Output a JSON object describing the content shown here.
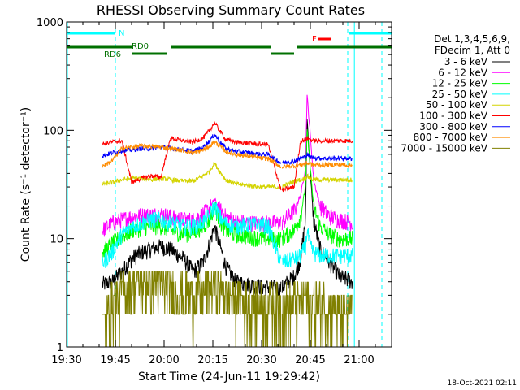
{
  "chart_data": {
    "type": "line",
    "title": "RHESSI Observing Summary Count Rates",
    "xlabel": "Start Time (24-Jun-11 19:29:42)",
    "ylabel": "Count Rate (s⁻¹ detector⁻¹)",
    "xscale": "time-minutes-after-19:30",
    "yscale": "log",
    "xlim": [
      0,
      100
    ],
    "ylim": [
      1,
      1000
    ],
    "x_ticks": [
      {
        "t": 0,
        "label": "19:30"
      },
      {
        "t": 15,
        "label": "19:45"
      },
      {
        "t": 30,
        "label": "20:00"
      },
      {
        "t": 45,
        "label": "20:15"
      },
      {
        "t": 60,
        "label": "20:30"
      },
      {
        "t": 75,
        "label": "20:45"
      },
      {
        "t": 90,
        "label": "21:00"
      }
    ],
    "y_ticks": [
      {
        "v": 1,
        "label": "1"
      },
      {
        "v": 10,
        "label": "10"
      },
      {
        "v": 100,
        "label": "100"
      },
      {
        "v": 1000,
        "label": "1000"
      }
    ],
    "legend_header": [
      "Det 1,3,4,5,6,9,",
      "FDecim 1, Att 0"
    ],
    "legend_placement": "right",
    "data_gaps": [
      [
        0,
        11
      ],
      [
        36,
        36.3
      ],
      [
        66,
        66.3
      ],
      [
        88,
        100
      ]
    ],
    "series": [
      {
        "name": "3 - 6 keV",
        "color": "#000000",
        "points": [
          [
            11,
            3.8
          ],
          [
            14,
            4.0
          ],
          [
            17,
            5.0
          ],
          [
            20,
            6.5
          ],
          [
            23,
            7.5
          ],
          [
            26,
            8.0
          ],
          [
            29,
            8.5
          ],
          [
            32,
            8.0
          ],
          [
            36,
            6.5
          ],
          [
            39,
            5.0
          ],
          [
            42,
            6.0
          ],
          [
            44,
            9.0
          ],
          [
            45.5,
            13.0
          ],
          [
            47,
            9.0
          ],
          [
            49,
            5.5
          ],
          [
            52,
            4.0
          ],
          [
            56,
            3.8
          ],
          [
            60,
            3.6
          ],
          [
            62,
            3.6
          ],
          [
            66,
            3.5
          ],
          [
            70,
            4.5
          ],
          [
            72,
            6.5
          ],
          [
            73.5,
            15.0
          ],
          [
            74,
            130.0
          ],
          [
            75,
            40.0
          ],
          [
            76,
            15.0
          ],
          [
            78,
            8.0
          ],
          [
            81,
            6.0
          ],
          [
            84,
            4.5
          ],
          [
            88,
            4.0
          ]
        ]
      },
      {
        "name": "6 - 12 keV",
        "color": "#ff00ff",
        "points": [
          [
            11,
            12.0
          ],
          [
            14,
            14.0
          ],
          [
            17,
            15.0
          ],
          [
            20,
            16.0
          ],
          [
            23,
            16.5
          ],
          [
            26,
            16.5
          ],
          [
            29,
            17.0
          ],
          [
            32,
            16.0
          ],
          [
            36,
            15.0
          ],
          [
            39,
            15.0
          ],
          [
            42,
            17.0
          ],
          [
            44,
            19.0
          ],
          [
            45.5,
            23.0
          ],
          [
            47,
            19.0
          ],
          [
            49,
            16.0
          ],
          [
            52,
            14.5
          ],
          [
            56,
            14.0
          ],
          [
            60,
            14.0
          ],
          [
            62,
            14.0
          ],
          [
            66,
            14.0
          ],
          [
            70,
            18.0
          ],
          [
            72,
            25.0
          ],
          [
            73.5,
            45.0
          ],
          [
            74,
            210.0
          ],
          [
            75,
            90.0
          ],
          [
            76,
            35.0
          ],
          [
            78,
            20.0
          ],
          [
            81,
            16.0
          ],
          [
            84,
            15.0
          ],
          [
            88,
            14.0
          ]
        ]
      },
      {
        "name": "12 - 25 keV",
        "color": "#00ff00",
        "points": [
          [
            11,
            7.5
          ],
          [
            14,
            9.0
          ],
          [
            17,
            10.5
          ],
          [
            20,
            12.0
          ],
          [
            23,
            12.5
          ],
          [
            26,
            13.0
          ],
          [
            29,
            13.0
          ],
          [
            32,
            12.0
          ],
          [
            36,
            11.0
          ],
          [
            39,
            11.5
          ],
          [
            42,
            13.0
          ],
          [
            44,
            15.0
          ],
          [
            45.5,
            20.0
          ],
          [
            47,
            15.0
          ],
          [
            49,
            12.0
          ],
          [
            52,
            11.0
          ],
          [
            56,
            10.5
          ],
          [
            60,
            10.0
          ],
          [
            62,
            10.0
          ],
          [
            66,
            10.0
          ],
          [
            70,
            12.0
          ],
          [
            72,
            16.0
          ],
          [
            73.5,
            30.0
          ],
          [
            74,
            100.0
          ],
          [
            75,
            45.0
          ],
          [
            76,
            20.0
          ],
          [
            78,
            13.0
          ],
          [
            81,
            11.0
          ],
          [
            84,
            10.0
          ],
          [
            88,
            10.0
          ]
        ]
      },
      {
        "name": "25 - 50 keV",
        "color": "#00ffff",
        "points": [
          [
            11,
            6.0
          ],
          [
            14,
            7.5
          ],
          [
            17,
            11.0
          ],
          [
            20,
            13.0
          ],
          [
            23,
            14.0
          ],
          [
            26,
            15.0
          ],
          [
            29,
            15.0
          ],
          [
            32,
            14.0
          ],
          [
            36,
            13.0
          ],
          [
            39,
            13.0
          ],
          [
            42,
            14.5
          ],
          [
            44,
            16.0
          ],
          [
            45.5,
            21.0
          ],
          [
            47,
            16.0
          ],
          [
            49,
            14.0
          ],
          [
            52,
            13.0
          ],
          [
            56,
            13.5
          ],
          [
            60,
            13.5
          ],
          [
            62,
            13.0
          ],
          [
            66,
            6.0
          ],
          [
            70,
            6.5
          ],
          [
            72,
            7.0
          ],
          [
            73.5,
            8.5
          ],
          [
            74,
            12.0
          ],
          [
            75,
            8.5
          ],
          [
            76,
            7.5
          ],
          [
            78,
            7.0
          ],
          [
            81,
            7.0
          ],
          [
            84,
            7.0
          ],
          [
            88,
            7.0
          ]
        ]
      },
      {
        "name": "50 - 100 keV",
        "color": "#d4d400",
        "points": [
          [
            11,
            32.0
          ],
          [
            14,
            33.0
          ],
          [
            17,
            35.0
          ],
          [
            20,
            36.0
          ],
          [
            23,
            36.0
          ],
          [
            26,
            35.0
          ],
          [
            29,
            36.0
          ],
          [
            32,
            35.0
          ],
          [
            36,
            34.0
          ],
          [
            39,
            34.0
          ],
          [
            42,
            38.0
          ],
          [
            44,
            42.0
          ],
          [
            45.5,
            50.0
          ],
          [
            47,
            42.0
          ],
          [
            49,
            35.0
          ],
          [
            52,
            32.0
          ],
          [
            56,
            31.0
          ],
          [
            60,
            30.0
          ],
          [
            62,
            30.0
          ],
          [
            66,
            30.0
          ],
          [
            70,
            34.0
          ],
          [
            72,
            35.0
          ],
          [
            73.5,
            36.0
          ],
          [
            74,
            38.0
          ],
          [
            75,
            36.0
          ],
          [
            76,
            35.0
          ],
          [
            78,
            35.0
          ],
          [
            81,
            35.0
          ],
          [
            84,
            35.0
          ],
          [
            88,
            35.0
          ]
        ]
      },
      {
        "name": "100 - 300 keV",
        "color": "#ff0000",
        "points": [
          [
            11,
            75.0
          ],
          [
            14,
            78.0
          ],
          [
            17,
            80.0
          ],
          [
            20,
            33.0
          ],
          [
            23,
            36.0
          ],
          [
            26,
            38.0
          ],
          [
            29,
            37.0
          ],
          [
            32,
            85.0
          ],
          [
            36,
            80.0
          ],
          [
            39,
            78.0
          ],
          [
            42,
            85.0
          ],
          [
            44,
            100.0
          ],
          [
            45.5,
            118.0
          ],
          [
            47,
            100.0
          ],
          [
            49,
            82.0
          ],
          [
            52,
            78.0
          ],
          [
            56,
            76.0
          ],
          [
            60,
            74.0
          ],
          [
            62,
            74.0
          ],
          [
            66,
            28.0
          ],
          [
            70,
            30.0
          ],
          [
            72,
            80.0
          ],
          [
            73.5,
            82.0
          ],
          [
            74,
            85.0
          ],
          [
            75,
            82.0
          ],
          [
            76,
            80.0
          ],
          [
            78,
            80.0
          ],
          [
            81,
            80.0
          ],
          [
            84,
            80.0
          ],
          [
            88,
            80.0
          ]
        ]
      },
      {
        "name": "300 - 800 keV",
        "color": "#0000ff",
        "points": [
          [
            11,
            58.0
          ],
          [
            14,
            62.0
          ],
          [
            17,
            65.0
          ],
          [
            20,
            66.0
          ],
          [
            23,
            68.0
          ],
          [
            26,
            68.0
          ],
          [
            29,
            70.0
          ],
          [
            32,
            68.0
          ],
          [
            36,
            66.0
          ],
          [
            39,
            64.0
          ],
          [
            42,
            70.0
          ],
          [
            44,
            80.0
          ],
          [
            45.5,
            92.0
          ],
          [
            47,
            80.0
          ],
          [
            49,
            68.0
          ],
          [
            52,
            64.0
          ],
          [
            56,
            62.0
          ],
          [
            60,
            60.0
          ],
          [
            62,
            60.0
          ],
          [
            66,
            50.0
          ],
          [
            70,
            52.0
          ],
          [
            72,
            55.0
          ],
          [
            73.5,
            57.0
          ],
          [
            74,
            60.0
          ],
          [
            75,
            57.0
          ],
          [
            76,
            56.0
          ],
          [
            78,
            55.0
          ],
          [
            81,
            55.0
          ],
          [
            84,
            55.0
          ],
          [
            88,
            55.0
          ]
        ]
      },
      {
        "name": "800 - 7000 keV",
        "color": "#ff8c00",
        "points": [
          [
            11,
            47.0
          ],
          [
            14,
            52.0
          ],
          [
            17,
            68.0
          ],
          [
            20,
            70.0
          ],
          [
            23,
            72.0
          ],
          [
            26,
            71.0
          ],
          [
            29,
            70.0
          ],
          [
            32,
            68.0
          ],
          [
            36,
            65.0
          ],
          [
            39,
            62.0
          ],
          [
            42,
            66.0
          ],
          [
            44,
            72.0
          ],
          [
            45.5,
            78.0
          ],
          [
            47,
            72.0
          ],
          [
            49,
            64.0
          ],
          [
            52,
            60.0
          ],
          [
            56,
            58.0
          ],
          [
            60,
            55.0
          ],
          [
            62,
            55.0
          ],
          [
            66,
            46.0
          ],
          [
            70,
            47.0
          ],
          [
            72,
            48.0
          ],
          [
            73.5,
            49.0
          ],
          [
            74,
            50.0
          ],
          [
            75,
            49.0
          ],
          [
            76,
            48.0
          ],
          [
            78,
            48.0
          ],
          [
            81,
            48.0
          ],
          [
            84,
            48.0
          ],
          [
            88,
            48.0
          ]
        ]
      },
      {
        "name": "7000 - 15000 keV",
        "color": "#808000",
        "points": [
          [
            11,
            1.5
          ],
          [
            14,
            2.5
          ],
          [
            17,
            3.2
          ],
          [
            20,
            3.8
          ],
          [
            23,
            4.0
          ],
          [
            26,
            4.0
          ],
          [
            29,
            3.8
          ],
          [
            32,
            3.5
          ],
          [
            36,
            3.2
          ],
          [
            39,
            3.0
          ],
          [
            42,
            3.2
          ],
          [
            44,
            3.5
          ],
          [
            45.5,
            3.8
          ],
          [
            47,
            3.4
          ],
          [
            49,
            3.0
          ],
          [
            52,
            2.8
          ],
          [
            56,
            2.6
          ],
          [
            60,
            2.5
          ],
          [
            62,
            2.5
          ],
          [
            66,
            2.4
          ],
          [
            70,
            2.6
          ],
          [
            72,
            2.6
          ],
          [
            73.5,
            2.7
          ],
          [
            74,
            2.8
          ],
          [
            75,
            2.7
          ],
          [
            76,
            2.6
          ],
          [
            78,
            2.5
          ],
          [
            81,
            2.4
          ],
          [
            84,
            2.2
          ],
          [
            88,
            2.0
          ]
        ]
      }
    ],
    "annotations": {
      "flag_N": {
        "text": "N",
        "color": "#00ffff"
      },
      "flag_F": {
        "text": "F",
        "color": "#ff0000"
      },
      "flag_RD0": {
        "text": "RD0",
        "color": "#007000"
      },
      "flag_RD6": {
        "text": "RD6",
        "color": "#007000"
      },
      "night_boundaries": [
        15,
        86.5,
        97
      ],
      "eclipse_bars": [
        [
          0,
          15
        ],
        [
          87,
          100
        ]
      ],
      "rd0_bars": [
        [
          0,
          20
        ],
        [
          32,
          63
        ],
        [
          71,
          100
        ]
      ],
      "rd6_bars": [
        [
          20,
          31
        ],
        [
          63,
          70
        ]
      ],
      "flare_bar": [
        [
          77.5,
          81.5
        ]
      ]
    },
    "timestamp": "18-Oct-2021 02:11"
  }
}
